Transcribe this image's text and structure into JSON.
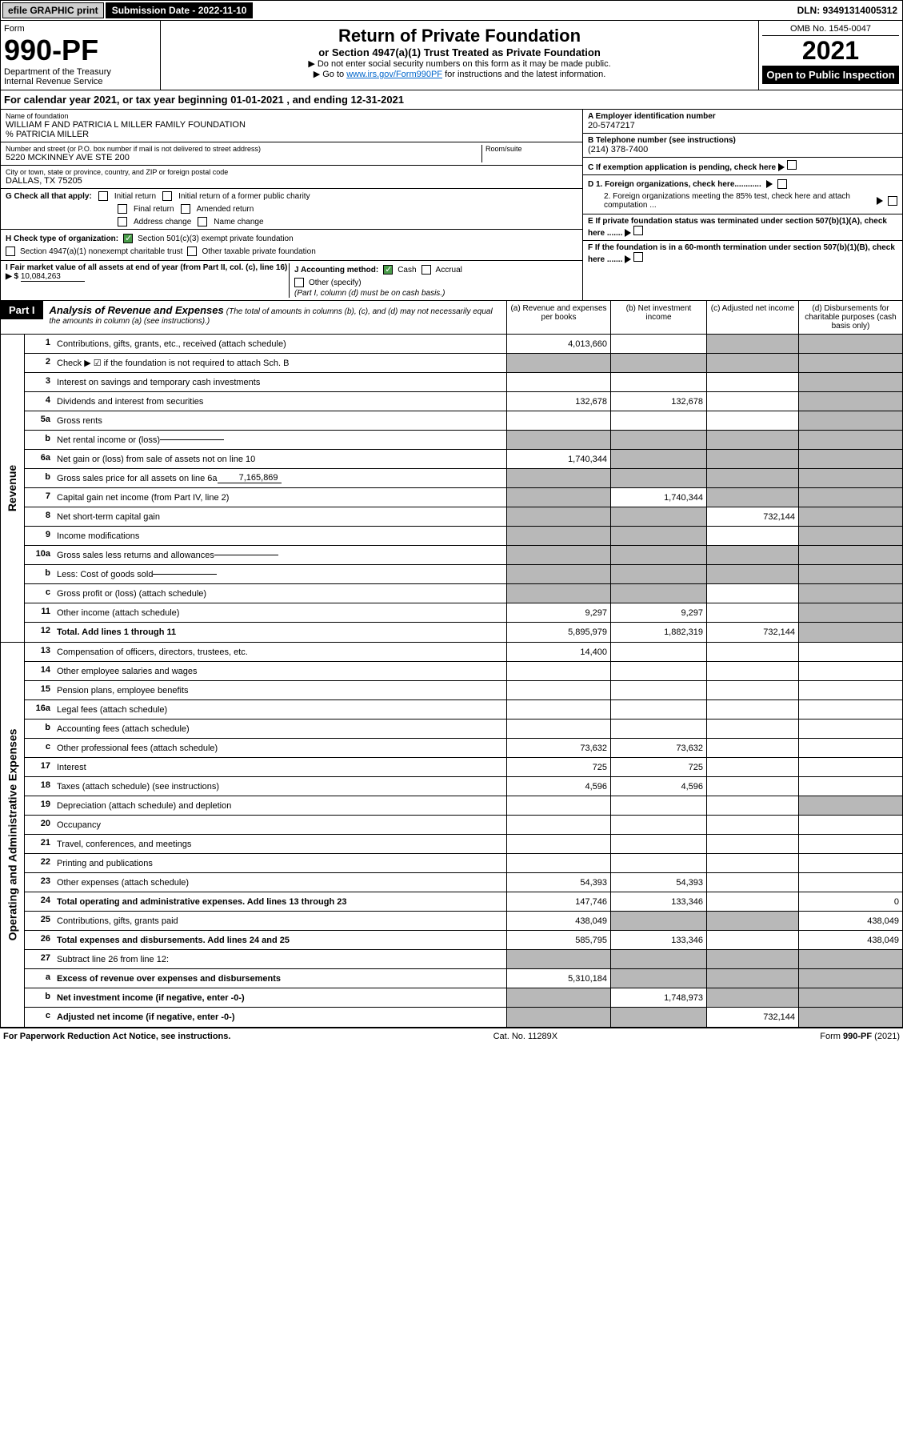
{
  "topbar": {
    "efile": "efile GRAPHIC print",
    "submission": "Submission Date - 2022-11-10",
    "dln": "DLN: 93491314005312"
  },
  "header": {
    "form_label": "Form",
    "form_num": "990-PF",
    "dept": "Department of the Treasury",
    "irs": "Internal Revenue Service",
    "title": "Return of Private Foundation",
    "subtitle": "or Section 4947(a)(1) Trust Treated as Private Foundation",
    "note1": "▶ Do not enter social security numbers on this form as it may be made public.",
    "note2_prefix": "▶ Go to ",
    "note2_link": "www.irs.gov/Form990PF",
    "note2_suffix": " for instructions and the latest information.",
    "omb": "OMB No. 1545-0047",
    "year": "2021",
    "open": "Open to Public Inspection"
  },
  "cal_year": {
    "prefix": "For calendar year 2021, or tax year beginning ",
    "begin": "01-01-2021",
    "mid": " , and ending ",
    "end": "12-31-2021"
  },
  "info": {
    "name_label": "Name of foundation",
    "name": "WILLIAM F AND PATRICIA L MILLER FAMILY FOUNDATION",
    "care_of": "% PATRICIA MILLER",
    "addr_label": "Number and street (or P.O. box number if mail is not delivered to street address)",
    "addr": "5220 MCKINNEY AVE STE 200",
    "room_label": "Room/suite",
    "city_label": "City or town, state or province, country, and ZIP or foreign postal code",
    "city": "DALLAS, TX  75205",
    "a_label": "A Employer identification number",
    "a_val": "20-5747217",
    "b_label": "B Telephone number (see instructions)",
    "b_val": "(214) 378-7400",
    "c_label": "C If exemption application is pending, check here",
    "d1_label": "D 1. Foreign organizations, check here............",
    "d2_label": "2. Foreign organizations meeting the 85% test, check here and attach computation ...",
    "e_label": "E  If private foundation status was terminated under section 507(b)(1)(A), check here .......",
    "f_label": "F  If the foundation is in a 60-month termination under section 507(b)(1)(B), check here .......",
    "g_label": "G Check all that apply:",
    "g_initial": "Initial return",
    "g_initial_former": "Initial return of a former public charity",
    "g_final": "Final return",
    "g_amended": "Amended return",
    "g_addr": "Address change",
    "g_name": "Name change",
    "h_label": "H Check type of organization:",
    "h_501c3": "Section 501(c)(3) exempt private foundation",
    "h_4947": "Section 4947(a)(1) nonexempt charitable trust",
    "h_other": "Other taxable private foundation",
    "i_label": "I Fair market value of all assets at end of year (from Part II, col. (c), line 16) ▶ $",
    "i_val": "10,084,263",
    "j_label": "J Accounting method:",
    "j_cash": "Cash",
    "j_accrual": "Accrual",
    "j_other": "Other (specify)",
    "j_note": "(Part I, column (d) must be on cash basis.)"
  },
  "part1": {
    "badge": "Part I",
    "title": "Analysis of Revenue and Expenses",
    "sub": "(The total of amounts in columns (b), (c), and (d) may not necessarily equal the amounts in column (a) (see instructions).)",
    "col_a": "(a) Revenue and expenses per books",
    "col_b": "(b) Net investment income",
    "col_c": "(c) Adjusted net income",
    "col_d": "(d) Disbursements for charitable purposes (cash basis only)"
  },
  "revenue_side": "Revenue",
  "expenses_side": "Operating and Administrative Expenses",
  "rows": [
    {
      "n": "1",
      "label": "Contributions, gifts, grants, etc., received (attach schedule)",
      "a": "4,013,660",
      "b": "",
      "c": "",
      "d": "",
      "grey_b": false,
      "grey_c": true,
      "grey_d": true
    },
    {
      "n": "2",
      "label": "Check ▶ ☑ if the foundation is not required to attach Sch. B",
      "a": "",
      "b": "",
      "c": "",
      "d": "",
      "grey_a": true,
      "grey_b": true,
      "grey_c": true,
      "grey_d": true,
      "bold_not": true
    },
    {
      "n": "3",
      "label": "Interest on savings and temporary cash investments",
      "a": "",
      "b": "",
      "c": "",
      "d": "",
      "grey_d": true
    },
    {
      "n": "4",
      "label": "Dividends and interest from securities",
      "a": "132,678",
      "b": "132,678",
      "c": "",
      "d": "",
      "grey_d": true
    },
    {
      "n": "5a",
      "label": "Gross rents",
      "a": "",
      "b": "",
      "c": "",
      "d": "",
      "grey_d": true
    },
    {
      "n": "b",
      "label": "Net rental income or (loss)",
      "a": "",
      "b": "",
      "c": "",
      "d": "",
      "grey_a": true,
      "grey_b": true,
      "grey_c": true,
      "grey_d": true,
      "inline": true
    },
    {
      "n": "6a",
      "label": "Net gain or (loss) from sale of assets not on line 10",
      "a": "1,740,344",
      "b": "",
      "c": "",
      "d": "",
      "grey_b": true,
      "grey_c": true,
      "grey_d": true
    },
    {
      "n": "b",
      "label": "Gross sales price for all assets on line 6a",
      "a": "",
      "b": "",
      "c": "",
      "d": "",
      "grey_a": true,
      "grey_b": true,
      "grey_c": true,
      "grey_d": true,
      "inline": true,
      "inline_val": "7,165,869"
    },
    {
      "n": "7",
      "label": "Capital gain net income (from Part IV, line 2)",
      "a": "",
      "b": "1,740,344",
      "c": "",
      "d": "",
      "grey_a": true,
      "grey_c": true,
      "grey_d": true
    },
    {
      "n": "8",
      "label": "Net short-term capital gain",
      "a": "",
      "b": "",
      "c": "732,144",
      "d": "",
      "grey_a": true,
      "grey_b": true,
      "grey_d": true
    },
    {
      "n": "9",
      "label": "Income modifications",
      "a": "",
      "b": "",
      "c": "",
      "d": "",
      "grey_a": true,
      "grey_b": true,
      "grey_d": true
    },
    {
      "n": "10a",
      "label": "Gross sales less returns and allowances",
      "a": "",
      "b": "",
      "c": "",
      "d": "",
      "grey_a": true,
      "grey_b": true,
      "grey_c": true,
      "grey_d": true,
      "inline": true
    },
    {
      "n": "b",
      "label": "Less: Cost of goods sold",
      "a": "",
      "b": "",
      "c": "",
      "d": "",
      "grey_a": true,
      "grey_b": true,
      "grey_c": true,
      "grey_d": true,
      "inline": true
    },
    {
      "n": "c",
      "label": "Gross profit or (loss) (attach schedule)",
      "a": "",
      "b": "",
      "c": "",
      "d": "",
      "grey_a": true,
      "grey_b": true,
      "grey_d": true
    },
    {
      "n": "11",
      "label": "Other income (attach schedule)",
      "a": "9,297",
      "b": "9,297",
      "c": "",
      "d": "",
      "grey_d": true
    },
    {
      "n": "12",
      "label": "Total. Add lines 1 through 11",
      "a": "5,895,979",
      "b": "1,882,319",
      "c": "732,144",
      "d": "",
      "bold": true,
      "grey_d": true
    }
  ],
  "exp_rows": [
    {
      "n": "13",
      "label": "Compensation of officers, directors, trustees, etc.",
      "a": "14,400",
      "b": "",
      "c": "",
      "d": ""
    },
    {
      "n": "14",
      "label": "Other employee salaries and wages",
      "a": "",
      "b": "",
      "c": "",
      "d": ""
    },
    {
      "n": "15",
      "label": "Pension plans, employee benefits",
      "a": "",
      "b": "",
      "c": "",
      "d": ""
    },
    {
      "n": "16a",
      "label": "Legal fees (attach schedule)",
      "a": "",
      "b": "",
      "c": "",
      "d": ""
    },
    {
      "n": "b",
      "label": "Accounting fees (attach schedule)",
      "a": "",
      "b": "",
      "c": "",
      "d": ""
    },
    {
      "n": "c",
      "label": "Other professional fees (attach schedule)",
      "a": "73,632",
      "b": "73,632",
      "c": "",
      "d": ""
    },
    {
      "n": "17",
      "label": "Interest",
      "a": "725",
      "b": "725",
      "c": "",
      "d": ""
    },
    {
      "n": "18",
      "label": "Taxes (attach schedule) (see instructions)",
      "a": "4,596",
      "b": "4,596",
      "c": "",
      "d": ""
    },
    {
      "n": "19",
      "label": "Depreciation (attach schedule) and depletion",
      "a": "",
      "b": "",
      "c": "",
      "d": "",
      "grey_d": true
    },
    {
      "n": "20",
      "label": "Occupancy",
      "a": "",
      "b": "",
      "c": "",
      "d": ""
    },
    {
      "n": "21",
      "label": "Travel, conferences, and meetings",
      "a": "",
      "b": "",
      "c": "",
      "d": ""
    },
    {
      "n": "22",
      "label": "Printing and publications",
      "a": "",
      "b": "",
      "c": "",
      "d": ""
    },
    {
      "n": "23",
      "label": "Other expenses (attach schedule)",
      "a": "54,393",
      "b": "54,393",
      "c": "",
      "d": ""
    },
    {
      "n": "24",
      "label": "Total operating and administrative expenses. Add lines 13 through 23",
      "a": "147,746",
      "b": "133,346",
      "c": "",
      "d": "0",
      "bold": true
    },
    {
      "n": "25",
      "label": "Contributions, gifts, grants paid",
      "a": "438,049",
      "b": "",
      "c": "",
      "d": "438,049",
      "grey_b": true,
      "grey_c": true
    },
    {
      "n": "26",
      "label": "Total expenses and disbursements. Add lines 24 and 25",
      "a": "585,795",
      "b": "133,346",
      "c": "",
      "d": "438,049",
      "bold": true
    },
    {
      "n": "27",
      "label": "Subtract line 26 from line 12:",
      "a": "",
      "b": "",
      "c": "",
      "d": "",
      "grey_a": true,
      "grey_b": true,
      "grey_c": true,
      "grey_d": true
    },
    {
      "n": "a",
      "label": "Excess of revenue over expenses and disbursements",
      "a": "5,310,184",
      "b": "",
      "c": "",
      "d": "",
      "bold": true,
      "grey_b": true,
      "grey_c": true,
      "grey_d": true
    },
    {
      "n": "b",
      "label": "Net investment income (if negative, enter -0-)",
      "a": "",
      "b": "1,748,973",
      "c": "",
      "d": "",
      "bold": true,
      "grey_a": true,
      "grey_c": true,
      "grey_d": true
    },
    {
      "n": "c",
      "label": "Adjusted net income (if negative, enter -0-)",
      "a": "",
      "b": "",
      "c": "732,144",
      "d": "",
      "bold": true,
      "grey_a": true,
      "grey_b": true,
      "grey_d": true
    }
  ],
  "footer": {
    "left": "For Paperwork Reduction Act Notice, see instructions.",
    "mid": "Cat. No. 11289X",
    "right": "Form 990-PF (2021)"
  }
}
